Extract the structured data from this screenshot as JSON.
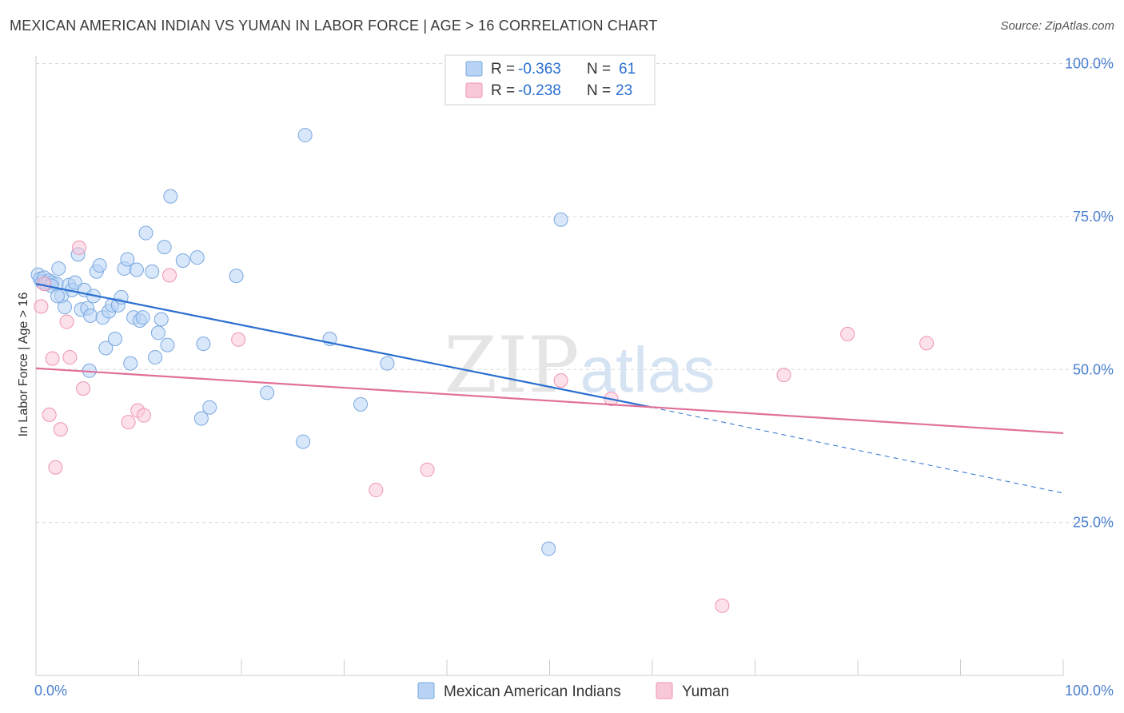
{
  "title": "MEXICAN AMERICAN INDIAN VS YUMAN IN LABOR FORCE | AGE > 16 CORRELATION CHART",
  "source": "Source: ZipAtlas.com",
  "watermark": {
    "zip": "ZIP",
    "atlas": "atlas"
  },
  "colors": {
    "blue_fill": "#b8d3f5",
    "blue_stroke": "#7aa8e0",
    "blue_line": "#2a6fd0",
    "pink_fill": "#f9c8d8",
    "pink_stroke": "#ee94b3",
    "pink_line": "#e0709a",
    "tick_label": "#4a7fd0",
    "grid": "#d8d8d8"
  },
  "legend_top": {
    "rows": [
      {
        "r_label": "R =",
        "r_value": "-0.363",
        "n_label": "N =",
        "n_value": "61"
      },
      {
        "r_label": "R =",
        "r_value": "-0.238",
        "n_label": "N =",
        "n_value": "23"
      }
    ]
  },
  "legend_bottom": [
    "Mexican American Indians",
    "Yuman"
  ],
  "chart_data": {
    "type": "scatter",
    "title": "MEXICAN AMERICAN INDIAN VS YUMAN IN LABOR FORCE | AGE > 16 CORRELATION CHART",
    "xlabel": "",
    "ylabel": "In Labor Force | Age > 16",
    "xlim": [
      0,
      100
    ],
    "ylim": [
      0,
      105
    ],
    "x_tick_labels": [
      "0.0%",
      "100.0%"
    ],
    "y_ticks": [
      25,
      50,
      75,
      100
    ],
    "y_tick_labels": [
      "25.0%",
      "50.0%",
      "75.0%",
      "100.0%"
    ],
    "grid": true,
    "legend_placement": "top-center",
    "series": [
      {
        "name": "Mexican American Indians",
        "R": -0.363,
        "N": 61,
        "trend": {
          "x0": 0,
          "y0": 64.0,
          "x1": 60,
          "y1": 43.8,
          "dashed_to_x": 100,
          "dashed_to_y": 29.8
        },
        "points": [
          [
            0.2,
            65.5
          ],
          [
            0.4,
            64.8
          ],
          [
            0.6,
            64.3
          ],
          [
            0.8,
            65.0
          ],
          [
            1.0,
            64.0
          ],
          [
            1.3,
            64.5
          ],
          [
            1.6,
            64.2
          ],
          [
            2.0,
            64.0
          ],
          [
            2.2,
            66.5
          ],
          [
            2.5,
            62.0
          ],
          [
            2.8,
            60.2
          ],
          [
            3.2,
            63.8
          ],
          [
            3.5,
            63.0
          ],
          [
            3.8,
            64.2
          ],
          [
            4.1,
            68.8
          ],
          [
            4.4,
            59.8
          ],
          [
            4.7,
            63.0
          ],
          [
            5.0,
            60.0
          ],
          [
            5.3,
            58.8
          ],
          [
            5.6,
            62.0
          ],
          [
            5.9,
            66.0
          ],
          [
            6.2,
            67.0
          ],
          [
            6.5,
            58.5
          ],
          [
            6.8,
            53.5
          ],
          [
            7.1,
            59.5
          ],
          [
            7.4,
            60.5
          ],
          [
            7.7,
            55.0
          ],
          [
            8.0,
            60.5
          ],
          [
            8.3,
            61.8
          ],
          [
            8.6,
            66.5
          ],
          [
            8.9,
            68.0
          ],
          [
            9.2,
            51.0
          ],
          [
            9.5,
            58.5
          ],
          [
            9.8,
            66.3
          ],
          [
            10.1,
            58.0
          ],
          [
            10.4,
            58.5
          ],
          [
            10.7,
            72.3
          ],
          [
            11.3,
            66.0
          ],
          [
            11.6,
            52.0
          ],
          [
            11.9,
            56.0
          ],
          [
            12.2,
            58.2
          ],
          [
            12.5,
            70.0
          ],
          [
            12.8,
            54.0
          ],
          [
            13.1,
            78.3
          ],
          [
            14.3,
            67.8
          ],
          [
            15.7,
            68.3
          ],
          [
            16.1,
            42.0
          ],
          [
            16.3,
            54.2
          ],
          [
            16.9,
            43.8
          ],
          [
            19.5,
            65.3
          ],
          [
            22.5,
            46.2
          ],
          [
            26.0,
            38.2
          ],
          [
            26.2,
            88.3
          ],
          [
            28.6,
            55.0
          ],
          [
            31.6,
            44.3
          ],
          [
            34.2,
            51.0
          ],
          [
            49.9,
            20.7
          ],
          [
            51.1,
            74.5
          ],
          [
            1.5,
            63.7
          ],
          [
            5.2,
            49.8
          ],
          [
            2.1,
            62.0
          ]
        ]
      },
      {
        "name": "Yuman",
        "R": -0.238,
        "N": 23,
        "trend": {
          "x0": 0,
          "y0": 50.2,
          "x1": 100,
          "y1": 39.6
        },
        "points": [
          [
            0.5,
            60.3
          ],
          [
            1.3,
            42.6
          ],
          [
            1.6,
            51.8
          ],
          [
            1.9,
            34.0
          ],
          [
            2.4,
            40.2
          ],
          [
            3.0,
            57.8
          ],
          [
            3.3,
            52.0
          ],
          [
            4.2,
            69.9
          ],
          [
            4.6,
            46.9
          ],
          [
            9.0,
            41.4
          ],
          [
            9.9,
            43.3
          ],
          [
            10.5,
            42.5
          ],
          [
            13.0,
            65.4
          ],
          [
            19.7,
            54.9
          ],
          [
            33.1,
            30.3
          ],
          [
            38.1,
            33.6
          ],
          [
            51.1,
            48.2
          ],
          [
            56.0,
            45.2
          ],
          [
            66.8,
            11.4
          ],
          [
            72.8,
            49.1
          ],
          [
            79.0,
            55.8
          ],
          [
            86.7,
            54.3
          ],
          [
            0.8,
            64.0
          ]
        ]
      }
    ]
  }
}
